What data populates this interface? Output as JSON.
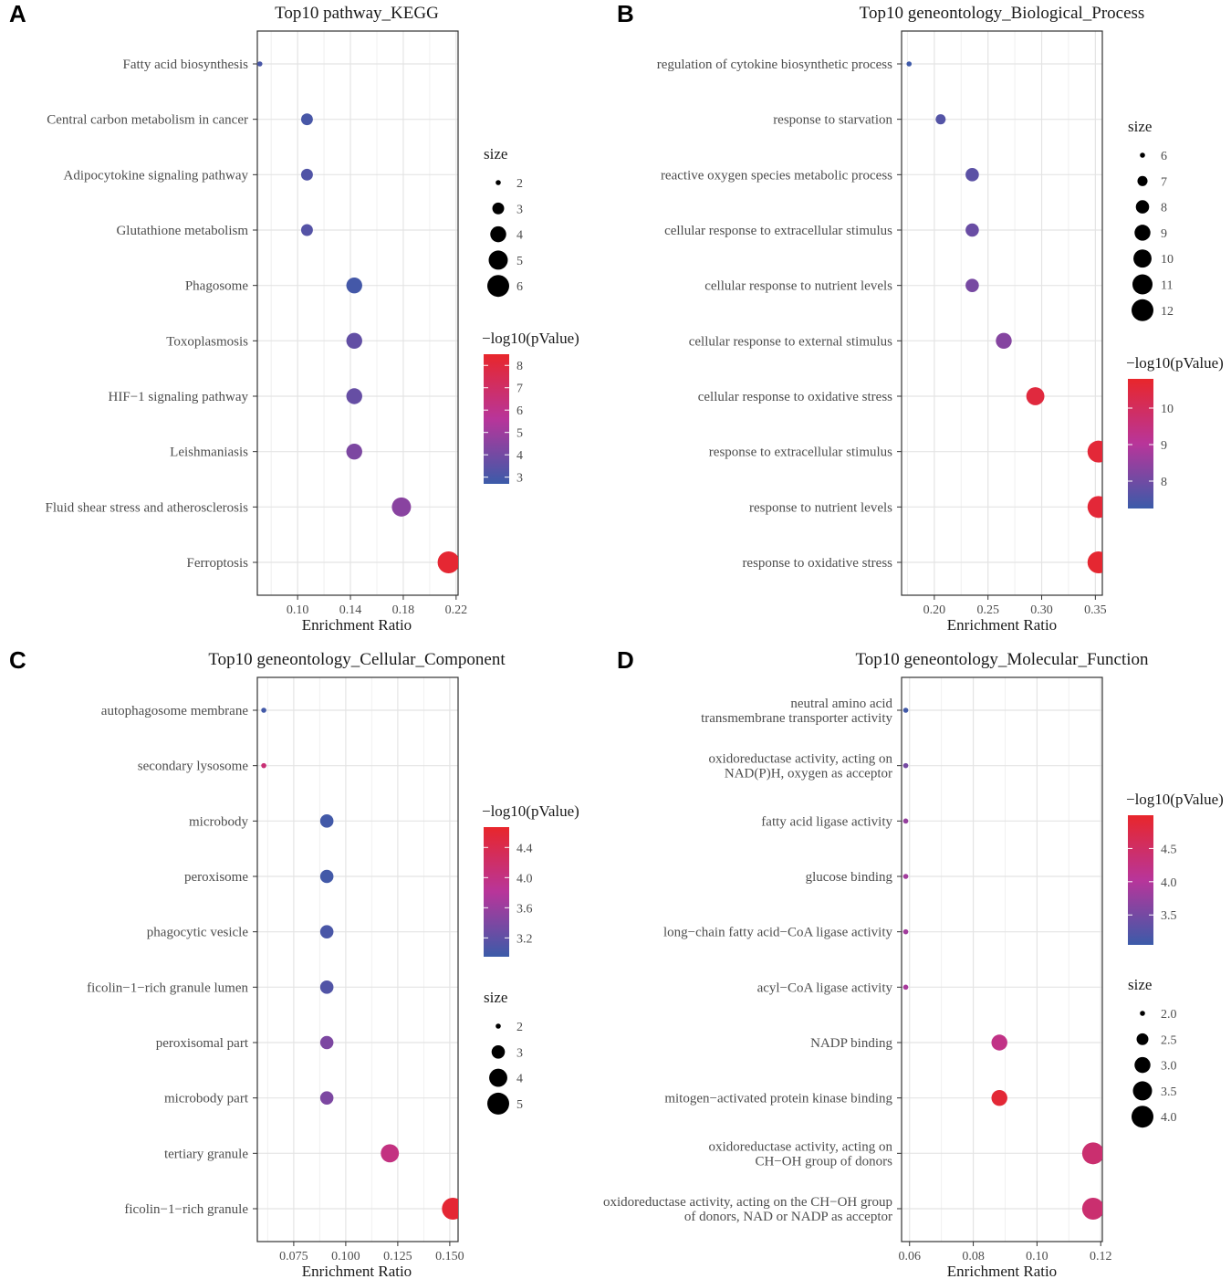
{
  "chart_data": [
    {
      "panel_letter": "A",
      "type": "scatter",
      "title": "Top10 pathway_KEGG",
      "xlabel": "Enrichment Ratio",
      "xlim": [
        0.0695,
        0.2215
      ],
      "xticks": [
        0.1,
        0.14,
        0.18,
        0.22
      ],
      "xtick_labels": [
        "0.10",
        "0.14",
        "0.18",
        "0.22"
      ],
      "categories": [
        [
          "Fatty acid biosynthesis"
        ],
        [
          "Central carbon metabolism in cancer"
        ],
        [
          "Adipocytokine signaling pathway"
        ],
        [
          "Glutathione metabolism"
        ],
        [
          "Phagosome"
        ],
        [
          "Toxoplasmosis"
        ],
        [
          "HIF−1 signaling pathway"
        ],
        [
          "Leishmaniasis"
        ],
        [
          "Fluid shear stress and atherosclerosis"
        ],
        [
          "Ferroptosis"
        ]
      ],
      "x": [
        0.0714,
        0.1071,
        0.1071,
        0.1071,
        0.1429,
        0.1429,
        0.1429,
        0.1429,
        0.1786,
        0.2143
      ],
      "size": [
        2,
        3,
        3,
        3,
        4,
        4,
        4,
        4,
        5,
        6
      ],
      "neglog10p": [
        3.0,
        3.0,
        3.2,
        3.3,
        2.9,
        3.6,
        3.7,
        4.2,
        4.5,
        8.3
      ],
      "legend_size": {
        "title": "size",
        "values": [
          2,
          3,
          4,
          5,
          6
        ],
        "labels": [
          "2",
          "3",
          "4",
          "5",
          "6"
        ]
      },
      "legend_color": {
        "title": "−log10(pValue)",
        "min": 2.7,
        "max": 8.5,
        "ticks": [
          3,
          4,
          5,
          6,
          7,
          8
        ],
        "labels": [
          "3",
          "4",
          "5",
          "6",
          "7",
          "8"
        ]
      },
      "legend_order": [
        "size",
        "color"
      ],
      "colors": {
        "low": "#3b5ba9",
        "mid": "#b8359a",
        "high": "#e8262b"
      }
    },
    {
      "panel_letter": "B",
      "type": "scatter",
      "title": "Top10 geneontology_Biological_Process",
      "xlabel": "Enrichment Ratio",
      "xlim": [
        0.1695,
        0.3565
      ],
      "xticks": [
        0.2,
        0.25,
        0.3,
        0.35
      ],
      "xtick_labels": [
        "0.20",
        "0.25",
        "0.30",
        "0.35"
      ],
      "categories": [
        [
          "regulation of cytokine biosynthetic process"
        ],
        [
          "response to starvation"
        ],
        [
          "reactive oxygen species metabolic process"
        ],
        [
          "cellular response to extracellular stimulus"
        ],
        [
          "cellular response to nutrient levels"
        ],
        [
          "cellular response to external stimulus"
        ],
        [
          "cellular response to oxidative stress"
        ],
        [
          "response to extracellular stimulus"
        ],
        [
          "response to nutrient levels"
        ],
        [
          "response to oxidative stress"
        ]
      ],
      "x": [
        0.1765,
        0.2059,
        0.2353,
        0.2353,
        0.2353,
        0.2647,
        0.2941,
        0.3529,
        0.3529,
        0.3529
      ],
      "size": [
        6,
        7,
        8,
        8,
        8,
        9,
        10,
        12,
        12,
        12
      ],
      "neglog10p": [
        7.3,
        7.6,
        7.7,
        7.9,
        8.1,
        8.3,
        10.5,
        10.6,
        10.6,
        10.7
      ],
      "legend_size": {
        "title": "size",
        "values": [
          6,
          7,
          8,
          9,
          10,
          11,
          12
        ],
        "labels": [
          "6",
          "7",
          "8",
          "9",
          "10",
          "11",
          "12"
        ]
      },
      "legend_color": {
        "title": "−log10(pValue)",
        "min": 7.25,
        "max": 10.8,
        "ticks": [
          8,
          9,
          10
        ],
        "labels": [
          "8",
          "9",
          "10"
        ]
      },
      "legend_order": [
        "size",
        "color"
      ],
      "colors": {
        "low": "#3b5ba9",
        "mid": "#b8359a",
        "high": "#e8262b"
      }
    },
    {
      "panel_letter": "C",
      "type": "scatter",
      "title": "Top10 geneontology_Cellular_Component",
      "xlabel": "Enrichment Ratio",
      "xlim": [
        0.0575,
        0.154
      ],
      "xticks": [
        0.075,
        0.1,
        0.125,
        0.15
      ],
      "xtick_labels": [
        "0.075",
        "0.100",
        "0.125",
        "0.150"
      ],
      "categories": [
        [
          "autophagosome membrane"
        ],
        [
          "secondary lysosome"
        ],
        [
          "microbody"
        ],
        [
          "peroxisome"
        ],
        [
          "phagocytic vesicle"
        ],
        [
          "ficolin−1−rich granule lumen"
        ],
        [
          "peroxisomal part"
        ],
        [
          "microbody part"
        ],
        [
          "tertiary granule"
        ],
        [
          "ficolin−1−rich granule"
        ]
      ],
      "x": [
        0.0606,
        0.0606,
        0.0909,
        0.0909,
        0.0909,
        0.0909,
        0.0909,
        0.0909,
        0.1212,
        0.1515
      ],
      "size": [
        2,
        2,
        3,
        3,
        3,
        3,
        3,
        3,
        4,
        5
      ],
      "neglog10p": [
        3.0,
        4.1,
        3.0,
        3.0,
        3.05,
        3.1,
        3.4,
        3.4,
        4.0,
        4.6
      ],
      "legend_size": {
        "title": "size",
        "values": [
          2,
          3,
          4,
          5
        ],
        "labels": [
          "2",
          "3",
          "4",
          "5"
        ]
      },
      "legend_color": {
        "title": "−log10(pValue)",
        "min": 2.95,
        "max": 4.67,
        "ticks": [
          3.2,
          3.6,
          4.0,
          4.4
        ],
        "labels": [
          "3.2",
          "3.6",
          "4.0",
          "4.4"
        ]
      },
      "legend_order": [
        "color",
        "size"
      ],
      "colors": {
        "low": "#3b5ba9",
        "mid": "#b8359a",
        "high": "#e8262b"
      }
    },
    {
      "panel_letter": "D",
      "type": "scatter",
      "title": "Top10 geneontology_Molecular_Function",
      "xlabel": "Enrichment Ratio",
      "xlim": [
        0.0575,
        0.1205
      ],
      "xticks": [
        0.06,
        0.08,
        0.1,
        0.12
      ],
      "xtick_labels": [
        "0.06",
        "0.08",
        "0.10",
        "0.12"
      ],
      "categories": [
        [
          "neutral amino acid",
          "transmembrane transporter activity"
        ],
        [
          "oxidoreductase activity, acting on",
          "NAD(P)H, oxygen as acceptor"
        ],
        [
          "fatty acid ligase activity"
        ],
        [
          "glucose binding"
        ],
        [
          "long−chain fatty acid−CoA ligase activity"
        ],
        [
          "acyl−CoA ligase activity"
        ],
        [
          "NADP binding"
        ],
        [
          "mitogen−activated protein kinase binding"
        ],
        [
          "oxidoreductase activity, acting on",
          "CH−OH group of donors"
        ],
        [
          "oxidoreductase activity, acting on the CH−OH group",
          "of donors, NAD or NADP as acceptor"
        ]
      ],
      "x": [
        0.0588,
        0.0588,
        0.0588,
        0.0588,
        0.0588,
        0.0588,
        0.0882,
        0.0882,
        0.1176,
        0.1176
      ],
      "size": [
        2,
        2,
        2,
        2,
        2,
        2,
        3,
        3,
        4,
        4
      ],
      "neglog10p": [
        3.1,
        3.5,
        3.75,
        3.85,
        3.85,
        3.9,
        4.2,
        4.9,
        4.4,
        4.4
      ],
      "legend_size": {
        "title": "size",
        "values": [
          2.0,
          2.5,
          3.0,
          3.5,
          4.0
        ],
        "labels": [
          "2.0",
          "2.5",
          "3.0",
          "3.5",
          "4.0"
        ]
      },
      "legend_color": {
        "title": "−log10(pValue)",
        "min": 3.05,
        "max": 5.0,
        "ticks": [
          3.5,
          4.0,
          4.5
        ],
        "labels": [
          "3.5",
          "4.0",
          "4.5"
        ]
      },
      "legend_order": [
        "color",
        "size"
      ],
      "colors": {
        "low": "#3b5ba9",
        "mid": "#b8359a",
        "high": "#e8262b"
      }
    }
  ]
}
